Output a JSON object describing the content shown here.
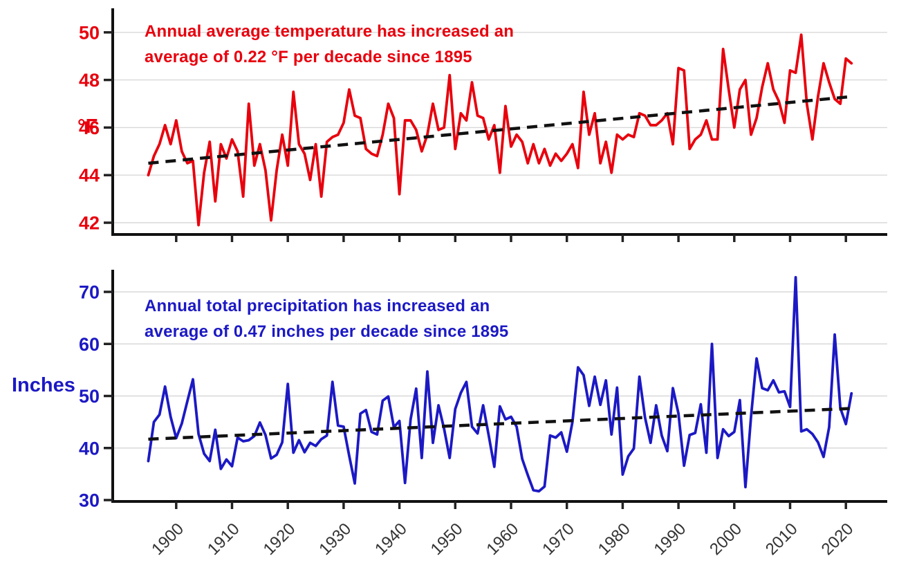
{
  "figure": {
    "background": "#ffffff",
    "grid_color": "#d8d8d8",
    "axis_color": "#111111",
    "x_tick_label_color": "#333333"
  },
  "x_axis": {
    "tick_years": [
      1900,
      1910,
      1920,
      1930,
      1940,
      1950,
      1960,
      1970,
      1980,
      1990,
      2000,
      2010,
      2020
    ],
    "range": [
      1895,
      2021
    ]
  },
  "chart_data": [
    {
      "id": "temperature",
      "type": "line",
      "title": "",
      "ylabel": "°F",
      "line_color": "#e8000d",
      "trend_color": "#111111",
      "annotation": {
        "line1": "Annual average temperature has increased an",
        "line2": "average of 0.22 °F per decade since 1895"
      },
      "x_start": 1895,
      "x_step": 1,
      "y_ticks": [
        42,
        44,
        46,
        48,
        50
      ],
      "grid_values": [
        42,
        44,
        46,
        48,
        50
      ],
      "ylim": [
        41.5,
        51.0
      ],
      "grid": true,
      "legend": "none",
      "trend": {
        "x": [
          1895,
          2021
        ],
        "values": [
          44.5,
          47.3
        ],
        "rate_label": "0.22 °F per decade"
      },
      "values": [
        44.0,
        44.8,
        45.3,
        46.1,
        45.3,
        46.3,
        45.0,
        44.5,
        44.6,
        41.9,
        44.1,
        45.4,
        42.9,
        45.3,
        44.7,
        45.5,
        45.0,
        43.1,
        47.0,
        44.4,
        45.3,
        44.2,
        42.1,
        44.2,
        45.7,
        44.4,
        47.5,
        45.3,
        44.9,
        43.8,
        45.3,
        43.1,
        45.4,
        45.6,
        45.7,
        46.2,
        47.6,
        46.5,
        46.4,
        45.1,
        44.9,
        44.8,
        45.7,
        47.0,
        46.4,
        43.2,
        46.3,
        46.3,
        45.9,
        45.0,
        45.7,
        47.0,
        45.9,
        46.0,
        48.2,
        45.1,
        46.6,
        46.3,
        47.9,
        46.5,
        46.4,
        45.5,
        46.1,
        44.1,
        46.9,
        45.2,
        45.7,
        45.4,
        44.5,
        45.3,
        44.5,
        45.1,
        44.4,
        44.9,
        44.6,
        44.9,
        45.3,
        44.3,
        47.5,
        45.7,
        46.6,
        44.5,
        45.4,
        44.1,
        45.7,
        45.5,
        45.7,
        45.6,
        46.6,
        46.5,
        46.1,
        46.1,
        46.3,
        46.6,
        45.3,
        48.5,
        48.4,
        45.1,
        45.5,
        45.7,
        46.3,
        45.5,
        45.5,
        49.3,
        47.6,
        46.0,
        47.6,
        48.0,
        45.7,
        46.4,
        47.7,
        48.7,
        47.6,
        47.1,
        46.2,
        48.4,
        48.3,
        49.9,
        47.0,
        45.5,
        47.3,
        48.7,
        47.9,
        47.2,
        47.0,
        48.9,
        48.7
      ]
    },
    {
      "id": "precipitation",
      "type": "line",
      "title": "",
      "ylabel": "Inches",
      "line_color": "#1c19c4",
      "trend_color": "#111111",
      "annotation": {
        "line1": "Annual total precipitation has increased an",
        "line2": "average of 0.47 inches per decade since 1895"
      },
      "x_start": 1895,
      "x_step": 1,
      "y_ticks": [
        30,
        40,
        50,
        60,
        70
      ],
      "grid_values": [
        40,
        50,
        60,
        70
      ],
      "ylim": [
        28.1,
        74.2
      ],
      "grid": true,
      "legend": "none",
      "trend": {
        "x": [
          1895,
          2021
        ],
        "values": [
          41.7,
          47.6
        ],
        "rate_label": "0.47 inches per decade"
      },
      "values": [
        37.5,
        45.0,
        46.4,
        51.8,
        46.0,
        41.9,
        44.7,
        49.0,
        53.2,
        42.7,
        38.9,
        37.5,
        43.5,
        36.0,
        37.8,
        36.5,
        42.0,
        41.3,
        41.5,
        42.3,
        44.9,
        42.5,
        38.0,
        38.7,
        41.1,
        52.3,
        39.1,
        41.5,
        39.2,
        41.0,
        40.4,
        41.7,
        42.4,
        52.7,
        44.3,
        44.1,
        38.5,
        33.2,
        46.6,
        47.3,
        43.1,
        42.6,
        49.1,
        49.9,
        44.0,
        45.2,
        33.3,
        45.5,
        51.4,
        38.1,
        54.7,
        41.0,
        48.2,
        43.7,
        38.1,
        47.5,
        50.6,
        52.7,
        44.1,
        42.8,
        48.2,
        42.4,
        36.4,
        48.0,
        45.5,
        46.0,
        44.1,
        37.9,
        34.8,
        31.9,
        31.7,
        32.6,
        42.4,
        42.0,
        43.0,
        39.3,
        45.0,
        55.5,
        54.0,
        48.1,
        53.7,
        48.3,
        53.0,
        42.6,
        51.6,
        34.9,
        38.4,
        39.9,
        53.7,
        45.9,
        41.0,
        48.2,
        42.4,
        39.4,
        51.5,
        46.6,
        36.6,
        42.5,
        42.9,
        48.4,
        39.1,
        60.0,
        38.1,
        43.6,
        42.3,
        43.1,
        49.2,
        32.5,
        46.0,
        57.2,
        51.5,
        51.1,
        53.0,
        50.7,
        50.9,
        47.9,
        72.8,
        43.2,
        43.6,
        42.7,
        41.1,
        38.3,
        44.0,
        61.8,
        47.7,
        44.6,
        50.5
      ]
    }
  ]
}
